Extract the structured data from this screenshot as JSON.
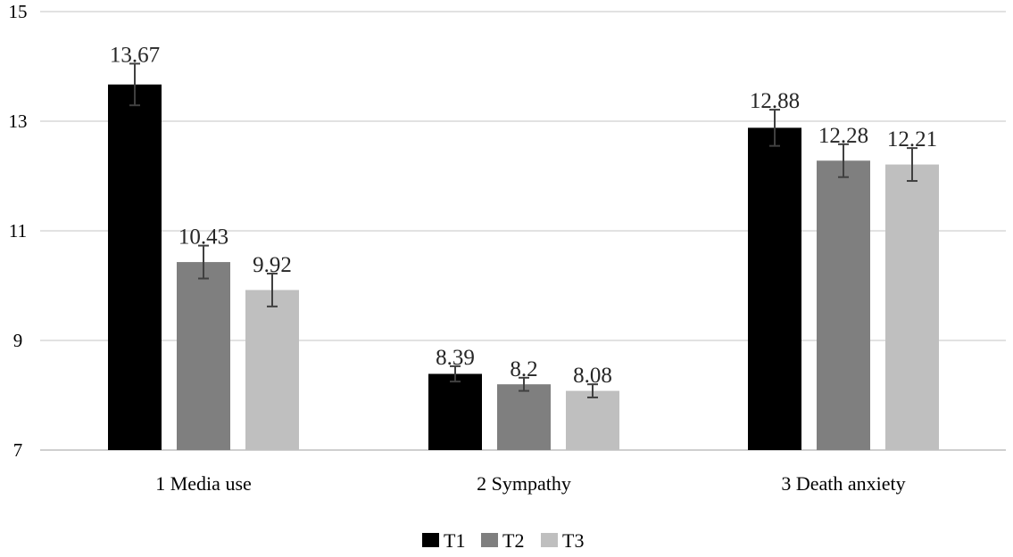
{
  "chart_data": {
    "type": "bar",
    "categories": [
      "1 Media use",
      "2 Sympathy",
      "3 Death anxiety"
    ],
    "series": [
      {
        "name": "T1",
        "color": "#000000",
        "values": [
          13.67,
          8.39,
          12.88
        ],
        "value_labels": [
          "13.67",
          "8.39",
          "12.88"
        ],
        "errors": [
          0.38,
          0.14,
          0.33
        ]
      },
      {
        "name": "T2",
        "color": "#7f7f7f",
        "values": [
          10.43,
          8.2,
          12.28
        ],
        "value_labels": [
          "10.43",
          "8.2",
          "12.28"
        ],
        "errors": [
          0.3,
          0.12,
          0.3
        ]
      },
      {
        "name": "T3",
        "color": "#bfbfbf",
        "values": [
          9.92,
          8.08,
          12.21
        ],
        "value_labels": [
          "9.92",
          "8.08",
          "12.21"
        ],
        "errors": [
          0.3,
          0.12,
          0.3
        ]
      }
    ],
    "ylim": [
      7,
      15
    ],
    "yticks": [
      7,
      9,
      11,
      13,
      15
    ],
    "ytick_labels": [
      "7",
      "9",
      "11",
      "13",
      "15"
    ],
    "title": "",
    "xlabel": "",
    "ylabel": "",
    "grid": true,
    "legend_position": "bottom"
  }
}
